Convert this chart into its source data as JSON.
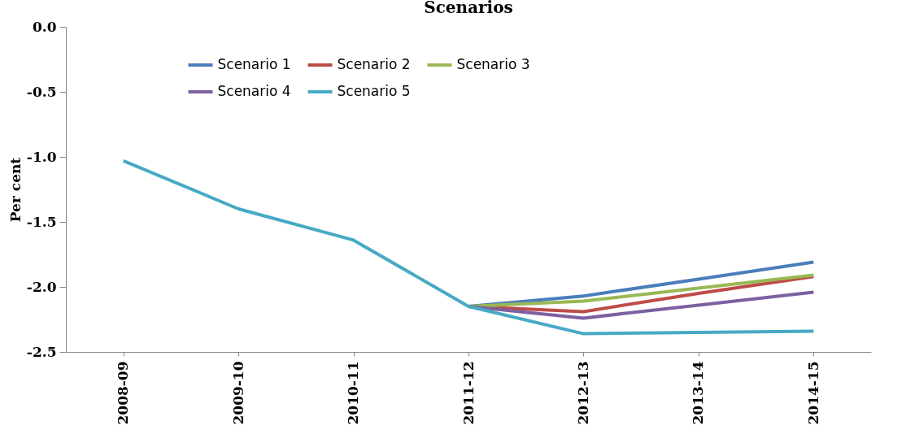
{
  "chart_data": {
    "type": "line",
    "title": "Scenarios",
    "ylabel": "Per cent",
    "categories": [
      "2008-09",
      "2009-10",
      "2010-11",
      "2011-12",
      "2012-13",
      "2013-14",
      "2014-15"
    ],
    "series": [
      {
        "name": "Scenario 1",
        "color": "#4a7ebb",
        "values": [
          null,
          null,
          null,
          -2.15,
          -2.07,
          -1.94,
          -1.81
        ]
      },
      {
        "name": "Scenario 2",
        "color": "#be4b48",
        "values": [
          null,
          null,
          null,
          -2.15,
          -2.19,
          -2.05,
          -1.92
        ]
      },
      {
        "name": "Scenario 3",
        "color": "#98b954",
        "values": [
          null,
          null,
          null,
          -2.15,
          -2.11,
          -2.01,
          -1.91
        ]
      },
      {
        "name": "Scenario 4",
        "color": "#7d60a0",
        "values": [
          null,
          null,
          null,
          -2.15,
          -2.24,
          -2.14,
          -2.04
        ]
      },
      {
        "name": "Scenario 5",
        "color": "#46aac5",
        "values": [
          -1.03,
          -1.4,
          -1.64,
          -2.15,
          -2.36,
          -2.35,
          -2.34
        ]
      }
    ],
    "ylim": [
      -2.5,
      0
    ],
    "yticks": [
      {
        "value": 0,
        "label": "0.0"
      },
      {
        "value": -0.5,
        "label": "-0.5"
      },
      {
        "value": -1,
        "label": "-1.0"
      },
      {
        "value": -1.5,
        "label": "-1.5"
      },
      {
        "value": -2,
        "label": "-2.0"
      },
      {
        "value": -2.5,
        "label": "-2.5"
      }
    ],
    "grid": false,
    "legend": "top",
    "marker": "none",
    "line_style": "solid"
  }
}
